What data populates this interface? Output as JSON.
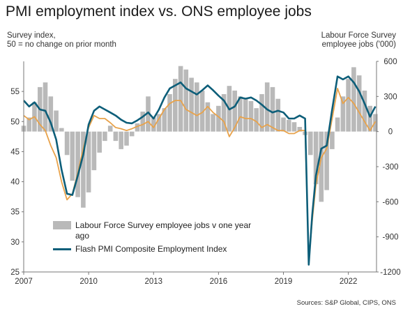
{
  "title": "PMI employment index vs. ONS employee jobs",
  "left_axis_note": [
    "Survey index,",
    "50 = no change on prior month"
  ],
  "right_axis_note": [
    "Labour Force Survey",
    "employee jobs  ('000)"
  ],
  "source": "Sources: S&P Global, CIPS, ONS",
  "colors": {
    "bars": "#b9b9b9",
    "composite": "#0d5e79",
    "secondary": "#e8a24a"
  },
  "chart_data": {
    "type": "line",
    "title": "PMI employment index vs. ONS employee jobs",
    "x_ticks": [
      "2007",
      "2010",
      "2013",
      "2016",
      "2019",
      "2022"
    ],
    "x_range": [
      2007.0,
      2023.3
    ],
    "left_axis": {
      "label": "Survey index, 50 = no change on prior month",
      "range": [
        25,
        60
      ],
      "ticks": [
        25,
        30,
        35,
        40,
        45,
        50,
        55
      ]
    },
    "right_axis": {
      "label": "Labour Force Survey employee jobs ('000)",
      "range": [
        -1200,
        600
      ],
      "ticks": [
        -1200,
        -900,
        -600,
        -300,
        0,
        300,
        600
      ]
    },
    "legend_placement": "bottom-left",
    "series": [
      {
        "name": "Labour Force Survey employee jobs v one year ago",
        "type": "bar",
        "axis": "right",
        "color": "#b9b9b9",
        "x": [
          2007.0,
          2007.25,
          2007.5,
          2007.75,
          2008.0,
          2008.25,
          2008.5,
          2008.75,
          2009.0,
          2009.25,
          2009.5,
          2009.75,
          2010.0,
          2010.25,
          2010.5,
          2010.75,
          2011.0,
          2011.25,
          2011.5,
          2011.75,
          2012.0,
          2012.25,
          2012.5,
          2012.75,
          2013.0,
          2013.25,
          2013.5,
          2013.75,
          2014.0,
          2014.25,
          2014.5,
          2014.75,
          2015.0,
          2015.25,
          2015.5,
          2015.75,
          2016.0,
          2016.25,
          2016.5,
          2016.75,
          2017.0,
          2017.25,
          2017.5,
          2017.75,
          2018.0,
          2018.25,
          2018.5,
          2018.75,
          2019.0,
          2019.25,
          2019.5,
          2019.75,
          2020.0,
          2020.25,
          2020.5,
          2020.75,
          2021.0,
          2021.25,
          2021.5,
          2021.75,
          2022.0,
          2022.25,
          2022.5,
          2022.75,
          2023.0,
          2023.25
        ],
        "values": [
          50,
          120,
          250,
          380,
          420,
          300,
          180,
          30,
          -200,
          -420,
          -560,
          -650,
          -520,
          -330,
          -180,
          -80,
          50,
          -80,
          -150,
          -120,
          -40,
          70,
          170,
          300,
          120,
          150,
          200,
          320,
          450,
          560,
          530,
          460,
          420,
          350,
          250,
          150,
          220,
          320,
          390,
          350,
          300,
          280,
          260,
          200,
          320,
          420,
          380,
          280,
          120,
          100,
          80,
          40,
          -30,
          -200,
          -450,
          -600,
          -500,
          -150,
          120,
          300,
          450,
          550,
          480,
          350,
          220,
          150
        ]
      },
      {
        "name": "Flash PMI Composite Employment Index",
        "type": "line",
        "axis": "left",
        "color": "#0d5e79",
        "x": [
          2007.0,
          2007.25,
          2007.5,
          2007.75,
          2008.0,
          2008.25,
          2008.5,
          2008.75,
          2009.0,
          2009.25,
          2009.5,
          2009.75,
          2010.0,
          2010.25,
          2010.5,
          2010.75,
          2011.0,
          2011.25,
          2011.5,
          2011.75,
          2012.0,
          2012.25,
          2012.5,
          2012.75,
          2013.0,
          2013.25,
          2013.5,
          2013.75,
          2014.0,
          2014.25,
          2014.5,
          2014.75,
          2015.0,
          2015.25,
          2015.5,
          2015.75,
          2016.0,
          2016.25,
          2016.5,
          2016.75,
          2017.0,
          2017.25,
          2017.5,
          2017.75,
          2018.0,
          2018.25,
          2018.5,
          2018.75,
          2019.0,
          2019.25,
          2019.5,
          2019.75,
          2020.0,
          2020.17,
          2020.33,
          2020.5,
          2020.75,
          2021.0,
          2021.25,
          2021.5,
          2021.75,
          2022.0,
          2022.25,
          2022.5,
          2022.75,
          2023.0,
          2023.25
        ],
        "values": [
          53.5,
          52.5,
          53.2,
          52.0,
          51.8,
          49.8,
          47.0,
          42.0,
          38.0,
          37.8,
          41.0,
          44.5,
          49.5,
          51.8,
          52.5,
          52.0,
          51.5,
          51.0,
          50.3,
          49.8,
          49.7,
          50.2,
          50.8,
          51.5,
          50.5,
          52.0,
          54.0,
          55.5,
          56.0,
          56.5,
          55.5,
          55.0,
          54.5,
          55.2,
          56.0,
          55.2,
          54.3,
          53.5,
          52.0,
          52.5,
          54.0,
          53.8,
          54.0,
          53.5,
          52.8,
          52.0,
          51.5,
          51.8,
          51.5,
          50.5,
          50.5,
          51.0,
          50.5,
          26.2,
          34.5,
          41.0,
          45.5,
          46.0,
          52.0,
          57.5,
          57.0,
          57.5,
          56.5,
          55.0,
          53.0,
          50.8,
          52.5
        ]
      },
      {
        "name": "",
        "type": "line",
        "axis": "left",
        "color": "#e8a24a",
        "x": [
          2007.0,
          2007.25,
          2007.5,
          2007.75,
          2008.0,
          2008.25,
          2008.5,
          2008.75,
          2009.0,
          2009.25,
          2009.5,
          2009.75,
          2010.0,
          2010.25,
          2010.5,
          2010.75,
          2011.0,
          2011.25,
          2011.5,
          2011.75,
          2012.0,
          2012.25,
          2012.5,
          2012.75,
          2013.0,
          2013.25,
          2013.5,
          2013.75,
          2014.0,
          2014.25,
          2014.5,
          2014.75,
          2015.0,
          2015.25,
          2015.5,
          2015.75,
          2016.0,
          2016.25,
          2016.5,
          2016.75,
          2017.0,
          2017.25,
          2017.5,
          2017.75,
          2018.0,
          2018.25,
          2018.5,
          2018.75,
          2019.0,
          2019.25,
          2019.5,
          2019.75,
          2020.0,
          2020.17,
          2020.33,
          2020.5,
          2020.75,
          2021.0,
          2021.25,
          2021.5,
          2021.75,
          2022.0,
          2022.25,
          2022.5,
          2022.75,
          2023.0,
          2023.25
        ],
        "values": [
          51.0,
          50.3,
          50.8,
          49.5,
          48.5,
          46.0,
          44.0,
          40.0,
          37.0,
          38.0,
          41.5,
          45.5,
          49.0,
          51.0,
          50.5,
          50.5,
          49.8,
          49.0,
          48.8,
          48.5,
          48.8,
          49.2,
          49.5,
          50.0,
          49.0,
          50.5,
          52.0,
          53.0,
          53.5,
          53.5,
          52.0,
          51.5,
          51.0,
          51.5,
          52.5,
          51.5,
          50.8,
          50.0,
          47.5,
          49.0,
          50.8,
          50.5,
          50.5,
          50.0,
          49.0,
          49.5,
          49.0,
          48.5,
          48.5,
          48.0,
          48.0,
          48.5,
          48.5,
          26.8,
          33.5,
          39.5,
          44.0,
          45.5,
          50.5,
          55.5,
          53.0,
          54.0,
          53.0,
          51.5,
          50.0,
          48.5,
          50.0
        ]
      }
    ]
  },
  "legend": {
    "bar_label": "Labour Force Survey employee jobs v one year ago",
    "line_label": "Flash PMI Composite Employment Index"
  }
}
